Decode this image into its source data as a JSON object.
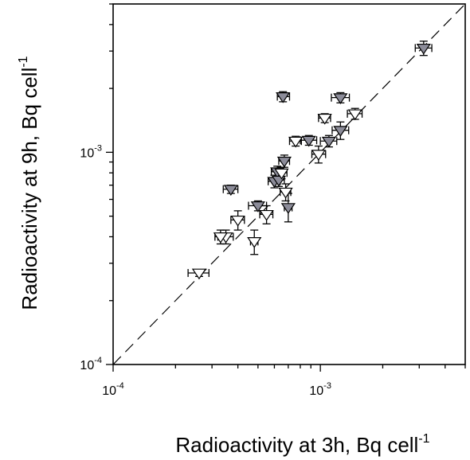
{
  "chart_data": {
    "type": "scatter",
    "title": "",
    "xlabel": "Radioactivity at 3h, Bq cell",
    "xlabel_superscript": "-1",
    "ylabel": "Radioactivity at 9h, Bq cell",
    "ylabel_superscript": "-1",
    "xscale": "log",
    "yscale": "log",
    "xlim": [
      0.0001,
      0.005
    ],
    "ylim": [
      0.0001,
      0.005
    ],
    "x_ticks": [
      {
        "value": 0.0001,
        "base": "10",
        "exp": "-4"
      },
      {
        "value": 0.001,
        "base": "10",
        "exp": "-3"
      }
    ],
    "y_ticks": [
      {
        "value": 0.0001,
        "base": "10",
        "exp": "-4"
      },
      {
        "value": 0.001,
        "base": "10",
        "exp": "-3"
      }
    ],
    "grid": false,
    "reference_line": {
      "type": "identity",
      "style": "dashed",
      "color": "#000000"
    },
    "series": [
      {
        "marker": "triangle-down",
        "fill": "#8c8c99",
        "points": [
          {
            "x": 0.00315,
            "y": 0.0031,
            "xerr": [
              0.00028,
              0.0003
            ],
            "yerr": [
              0.00024,
              0.00024
            ]
          },
          {
            "x": 0.00066,
            "y": 0.00183,
            "xerr": [
              4e-05,
              5e-05
            ],
            "yerr": [
              0.0001,
              0.0001
            ]
          },
          {
            "x": 0.00125,
            "y": 0.00181,
            "xerr": [
              0.00012,
              0.00013
            ],
            "yerr": [
              0.0001,
              0.0001
            ]
          },
          {
            "x": 0.00125,
            "y": 0.00127,
            "xerr": [
              0.00011,
              0.00012
            ],
            "yerr": [
              0.00012,
              0.00012
            ]
          },
          {
            "x": 0.0011,
            "y": 0.00113,
            "xerr": [
              0.0001,
              0.0001
            ],
            "yerr": [
              7e-05,
              7e-05
            ]
          },
          {
            "x": 0.00088,
            "y": 0.00114,
            "xerr": [
              8e-05,
              8e-05
            ],
            "yerr": [
              6e-05,
              6e-05
            ]
          },
          {
            "x": 0.00067,
            "y": 0.00091,
            "xerr": [
              4e-05,
              4e-05
            ],
            "yerr": [
              6e-05,
              6e-05
            ]
          },
          {
            "x": 0.00062,
            "y": 0.00081,
            "xerr": [
              4e-05,
              4e-05
            ],
            "yerr": [
              5e-05,
              5e-05
            ]
          },
          {
            "x": 0.0006,
            "y": 0.00073,
            "xerr": [
              4e-05,
              4e-05
            ],
            "yerr": [
              5e-05,
              5e-05
            ]
          },
          {
            "x": 0.00063,
            "y": 0.00074,
            "xerr": [
              4e-05,
              4e-05
            ],
            "yerr": [
              5e-05,
              5e-05
            ]
          },
          {
            "x": 0.00037,
            "y": 0.00067,
            "xerr": [
              3e-05,
              3e-05
            ],
            "yerr": [
              3e-05,
              3e-05
            ]
          },
          {
            "x": 0.0005,
            "y": 0.00056,
            "xerr": [
              5e-05,
              5e-05
            ],
            "yerr": [
              3e-05,
              3e-05
            ]
          },
          {
            "x": 0.0007,
            "y": 0.00055,
            "xerr": [
              3e-05,
              3e-05
            ],
            "yerr": [
              8e-05,
              9e-05
            ]
          }
        ]
      },
      {
        "marker": "triangle-down",
        "fill": "#ffffff",
        "points": [
          {
            "x": 0.00147,
            "y": 0.00152,
            "xerr": [
              0.00012,
              0.00012
            ],
            "yerr": [
              9e-05,
              9e-05
            ]
          },
          {
            "x": 0.00105,
            "y": 0.00145,
            "xerr": [
              7e-05,
              7e-05
            ],
            "yerr": [
              7e-05,
              7e-05
            ]
          },
          {
            "x": 0.00098,
            "y": 0.00098,
            "xerr": [
              7e-05,
              8e-05
            ],
            "yerr": [
              9e-05,
              9e-05
            ]
          },
          {
            "x": 0.00076,
            "y": 0.00113,
            "xerr": [
              5e-05,
              5e-05
            ],
            "yerr": [
              6e-05,
              6e-05
            ]
          },
          {
            "x": 0.00065,
            "y": 0.0008,
            "xerr": [
              4e-05,
              4e-05
            ],
            "yerr": [
              5e-05,
              5e-05
            ]
          },
          {
            "x": 0.00068,
            "y": 0.00065,
            "xerr": [
              4e-05,
              4e-05
            ],
            "yerr": [
              6e-05,
              6e-05
            ]
          },
          {
            "x": 0.00055,
            "y": 0.00051,
            "xerr": [
              4e-05,
              4e-05
            ],
            "yerr": [
              5e-05,
              5e-05
            ]
          },
          {
            "x": 0.0004,
            "y": 0.00048,
            "xerr": [
              3e-05,
              3e-05
            ],
            "yerr": [
              5e-05,
              5e-05
            ]
          },
          {
            "x": 0.00035,
            "y": 0.0004,
            "xerr": [
              3e-05,
              3e-05
            ],
            "yerr": [
              3e-05,
              3e-05
            ]
          },
          {
            "x": 0.00033,
            "y": 0.0004,
            "xerr": [
              2e-05,
              2e-05
            ],
            "yerr": [
              3e-05,
              3e-05
            ]
          },
          {
            "x": 0.00048,
            "y": 0.00038,
            "xerr": [
              2e-05,
              2e-05
            ],
            "yerr": [
              5e-05,
              5e-05
            ]
          },
          {
            "x": 0.00026,
            "y": 0.00027,
            "xerr": [
              3e-05,
              3e-05
            ],
            "yerr": [
              1e-05,
              1e-05
            ]
          }
        ]
      }
    ]
  }
}
